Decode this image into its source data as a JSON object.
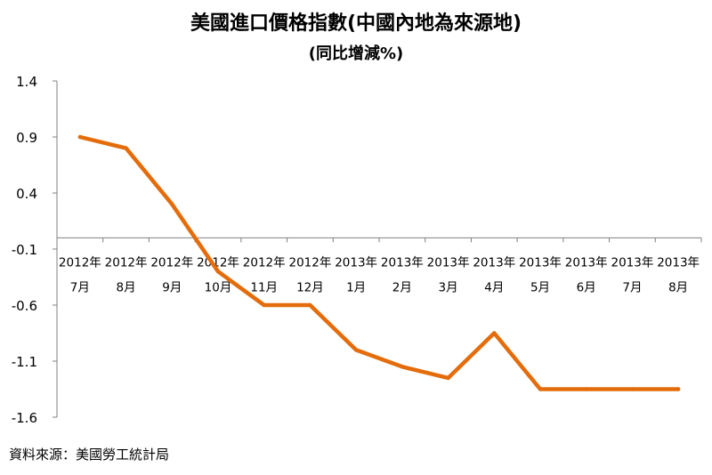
{
  "chart_data": {
    "type": "line",
    "title": "美國進口價格指數(中國內地為來源地)",
    "subtitle": "(同比增減%)",
    "categories": [
      [
        "2012年",
        "7月"
      ],
      [
        "2012年",
        "8月"
      ],
      [
        "2012年",
        "9月"
      ],
      [
        "2012年",
        "10月"
      ],
      [
        "2012年",
        "11月"
      ],
      [
        "2012年",
        "12月"
      ],
      [
        "2013年",
        "1月"
      ],
      [
        "2013年",
        "2月"
      ],
      [
        "2013年",
        "3月"
      ],
      [
        "2013年",
        "4月"
      ],
      [
        "2013年",
        "5月"
      ],
      [
        "2013年",
        "6月"
      ],
      [
        "2013年",
        "7月"
      ],
      [
        "2013年",
        "8月"
      ]
    ],
    "series": [
      {
        "values": [
          0.9,
          0.8,
          0.3,
          -0.3,
          -0.6,
          -0.6,
          -1.0,
          -1.15,
          -1.25,
          -0.85,
          -1.35,
          -1.35,
          -1.35,
          -1.35
        ]
      }
    ],
    "ylim": [
      -1.6,
      1.4
    ],
    "yticks": [
      "1.4",
      "0.9",
      "0.4",
      "-0.1",
      "-0.6",
      "-1.1",
      "-1.6"
    ],
    "ytick_values": [
      1.4,
      0.9,
      0.4,
      -0.1,
      -0.6,
      -1.1,
      -1.6
    ],
    "x_axis_crosses_at": 0,
    "grid": false,
    "line_color": "#E46C0A",
    "axis_color": "#808080"
  },
  "source": "資料來源：美國勞工統計局"
}
